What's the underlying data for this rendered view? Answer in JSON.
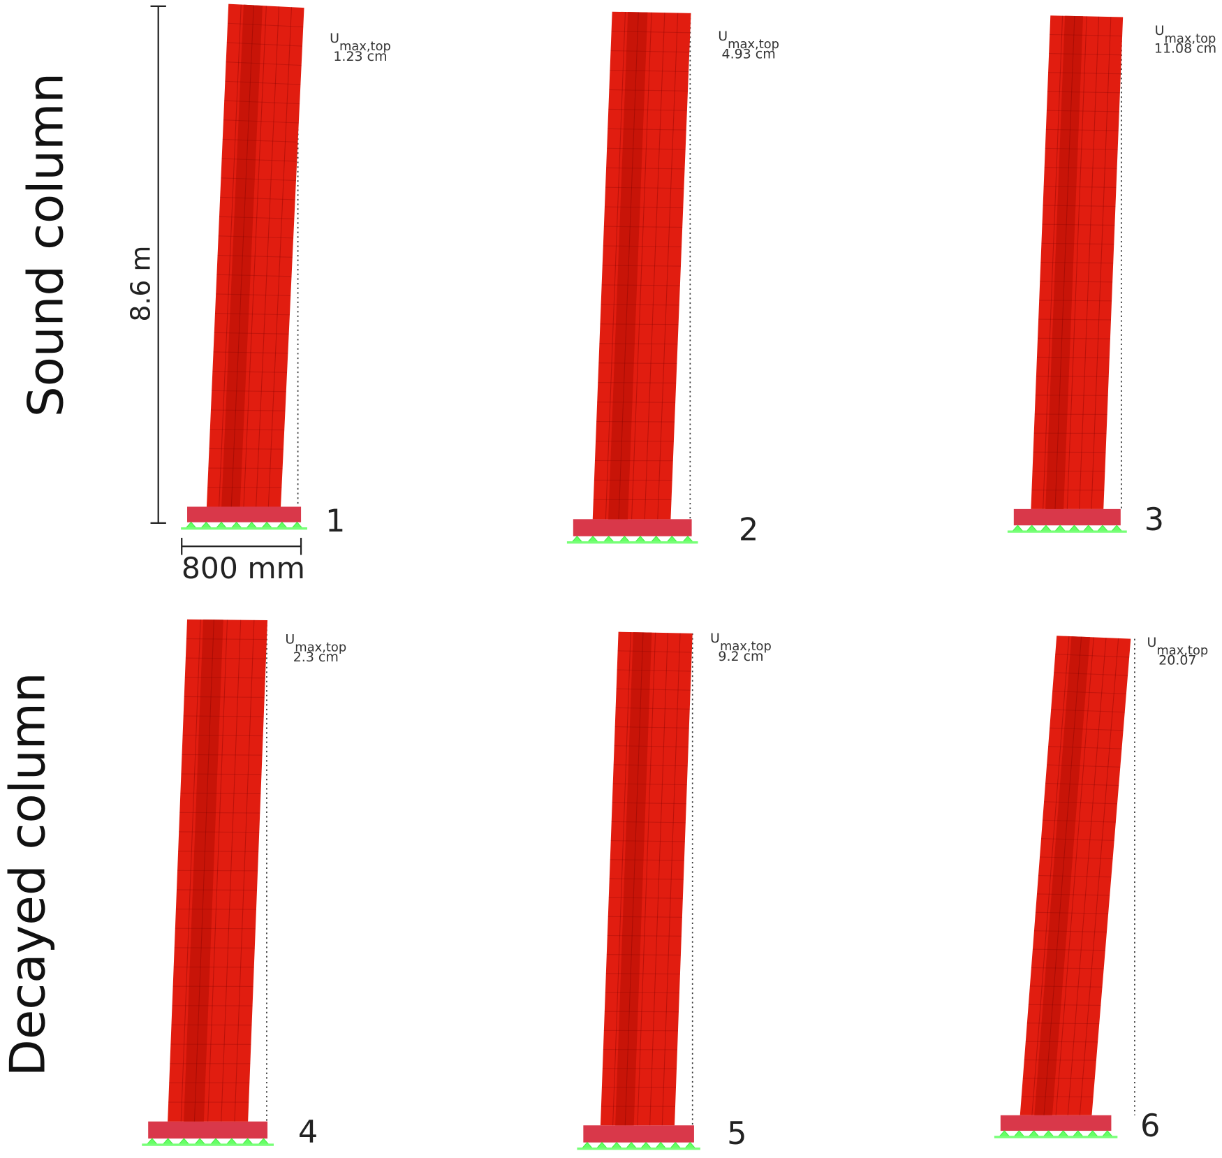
{
  "row_labels": [
    "Sound column",
    "Decayed column"
  ],
  "dimensions": {
    "height": "8.6 m",
    "width": "800 mm"
  },
  "panels": [
    {
      "number": "1",
      "u_symbol": "U",
      "u_subscript": "max,top",
      "value": "1.23 cm"
    },
    {
      "number": "2",
      "u_symbol": "U",
      "u_subscript": "max,top",
      "value": "4.93 cm"
    },
    {
      "number": "3",
      "u_symbol": "U",
      "u_subscript": "max,top",
      "value": "11.08 cm"
    },
    {
      "number": "4",
      "u_symbol": "U",
      "u_subscript": "max,top",
      "value": "2.3 cm"
    },
    {
      "number": "5",
      "u_symbol": "U",
      "u_subscript": "max,top",
      "value": "9.2 cm"
    },
    {
      "number": "6",
      "u_symbol": "U",
      "u_subscript": "max,top",
      "value": "20.07"
    }
  ]
}
